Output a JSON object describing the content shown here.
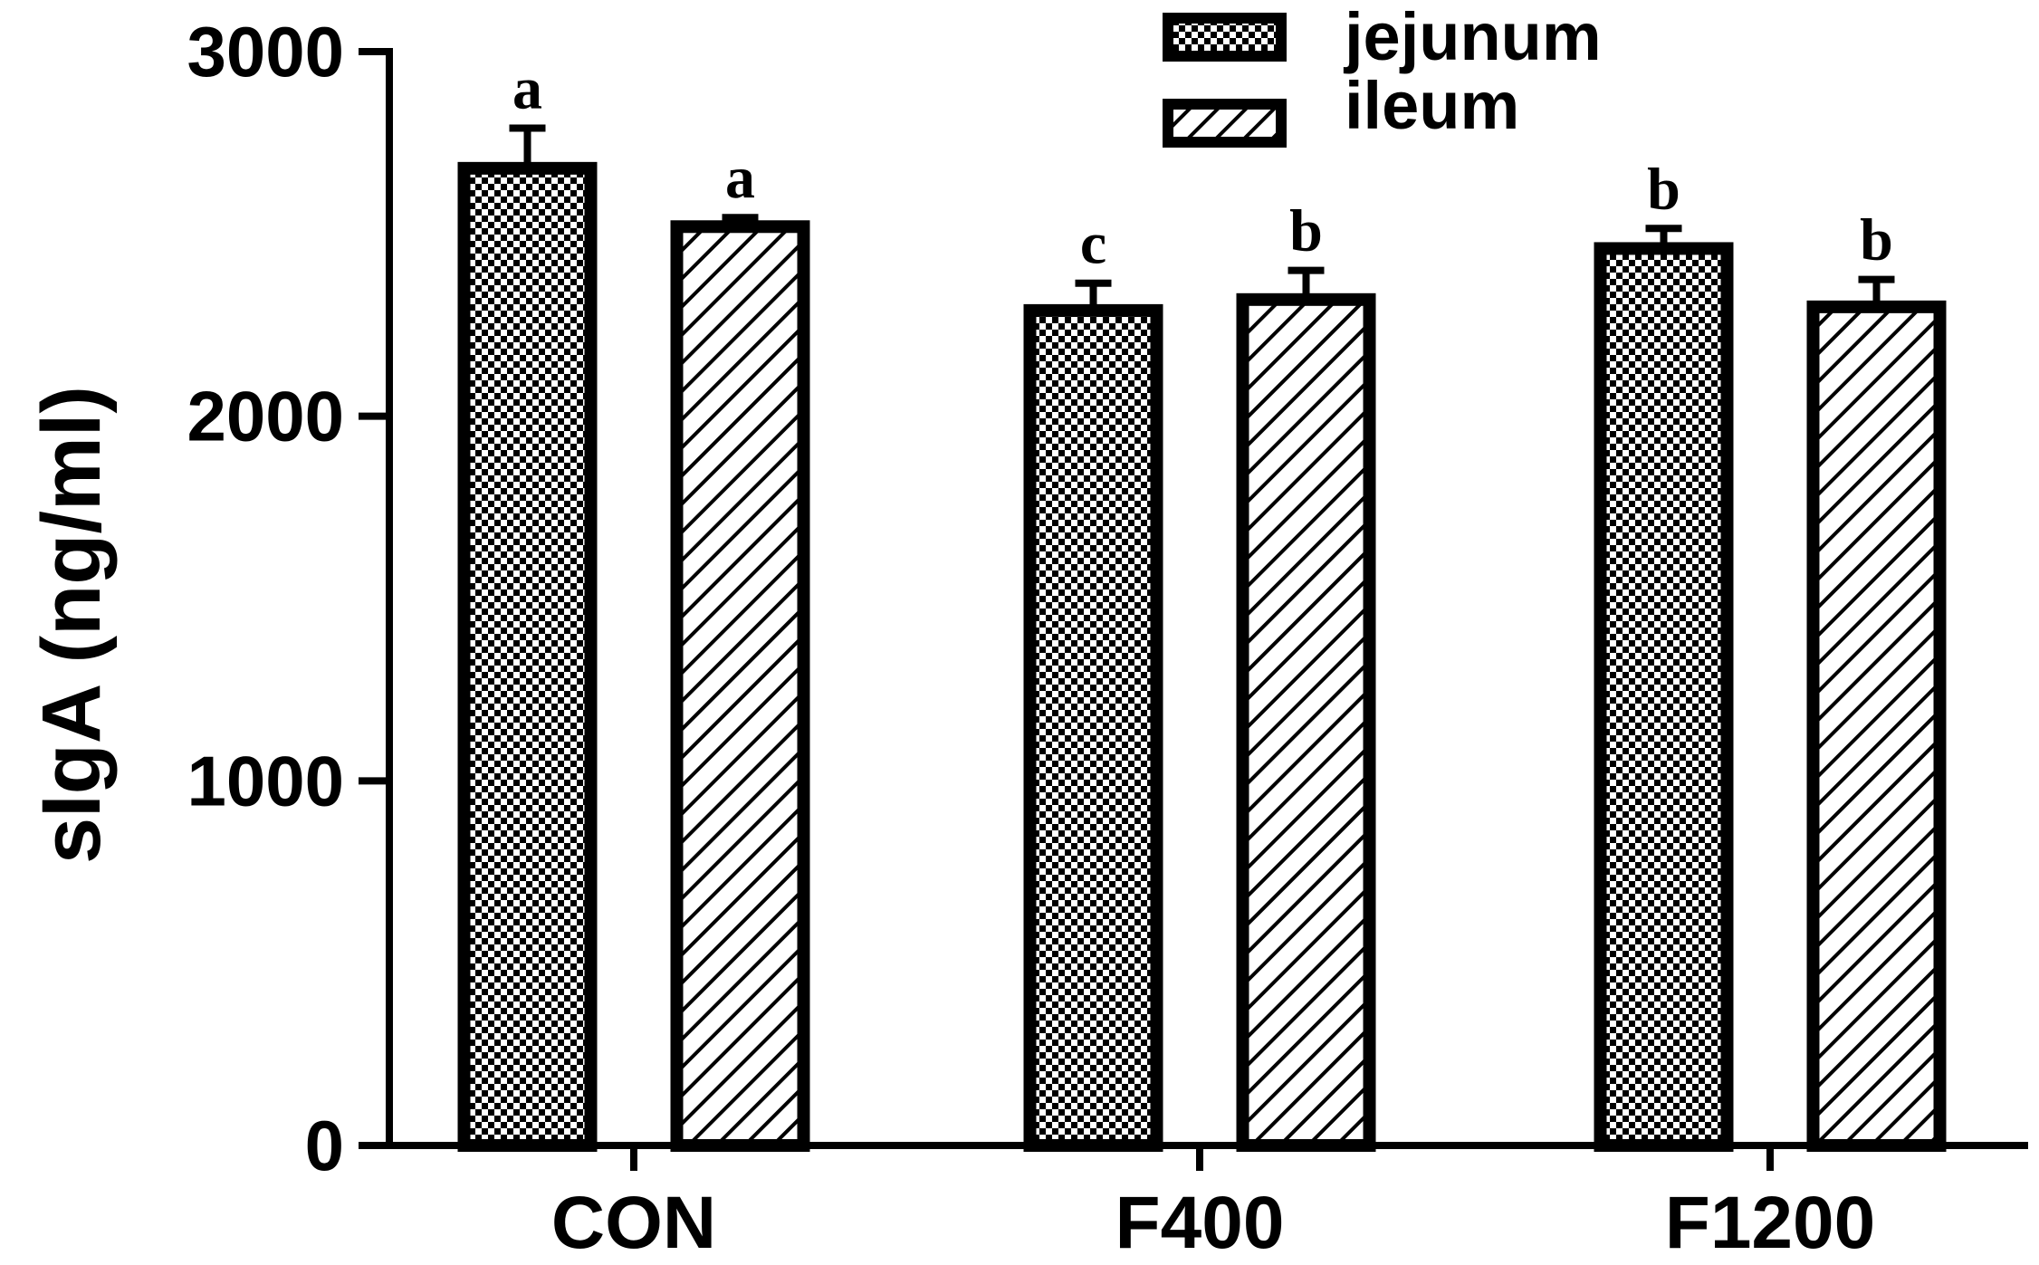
{
  "chart_data": {
    "type": "bar",
    "ylabel": "sIgA (ng/ml)",
    "xlabel": "",
    "ylim": [
      0,
      3000
    ],
    "yticks": [
      0,
      1000,
      2000,
      3000
    ],
    "categories": [
      "CON",
      "F400",
      "F1200"
    ],
    "series": [
      {
        "name": "jejunum",
        "pattern": "checkerboard",
        "values": [
          2680,
          2290,
          2460
        ],
        "errors": [
          110,
          75,
          55
        ],
        "labels": [
          "a",
          "c",
          "b"
        ]
      },
      {
        "name": "ileum",
        "pattern": "diagonal-hatch",
        "values": [
          2520,
          2320,
          2300
        ],
        "errors": [
          25,
          80,
          75
        ],
        "labels": [
          "a",
          "b",
          "b"
        ]
      }
    ],
    "legend": "top-center",
    "grid": false,
    "colors": {
      "stroke": "#000000",
      "fill": "#ffffff"
    }
  }
}
